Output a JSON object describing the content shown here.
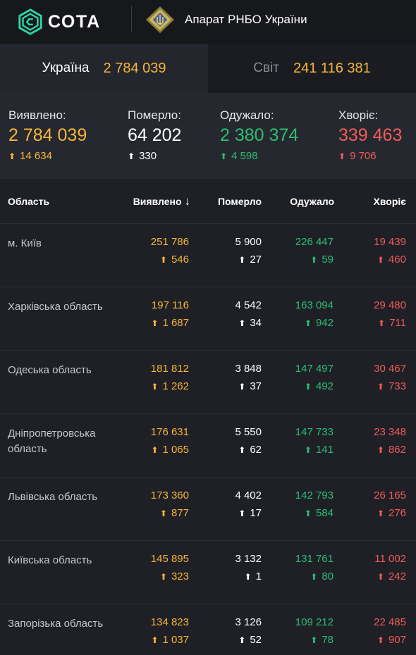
{
  "header": {
    "brand": "СОТА",
    "partner": "Апарат РНБО України"
  },
  "tabs": [
    {
      "label": "Україна",
      "value": "2 784 039",
      "active": true
    },
    {
      "label": "Світ",
      "value": "241 116 381",
      "active": false
    }
  ],
  "summary": {
    "detected": {
      "label": "Виявлено:",
      "value": "2 784 039",
      "delta": "14 634"
    },
    "died": {
      "label": "Померло:",
      "value": "64 202",
      "delta": "330"
    },
    "recovered": {
      "label": "Одужало:",
      "value": "2 380 374",
      "delta": "4 598"
    },
    "sick": {
      "label": "Хворіє:",
      "value": "339 463",
      "delta": "9 706"
    }
  },
  "table": {
    "headers": {
      "region": "Область",
      "detected": "Виявлено",
      "died": "Померло",
      "recovered": "Одужало",
      "sick": "Хворіє"
    },
    "rows": [
      {
        "region": "м. Київ",
        "detected": "251 786",
        "detected_d": "546",
        "died": "5 900",
        "died_d": "27",
        "recovered": "226 447",
        "recovered_d": "59",
        "sick": "19 439",
        "sick_d": "460"
      },
      {
        "region": "Харківська область",
        "detected": "197 116",
        "detected_d": "1 687",
        "died": "4 542",
        "died_d": "34",
        "recovered": "163 094",
        "recovered_d": "942",
        "sick": "29 480",
        "sick_d": "711"
      },
      {
        "region": "Одеська область",
        "detected": "181 812",
        "detected_d": "1 262",
        "died": "3 848",
        "died_d": "37",
        "recovered": "147 497",
        "recovered_d": "492",
        "sick": "30 467",
        "sick_d": "733"
      },
      {
        "region": "Дніпропетровська область",
        "detected": "176 631",
        "detected_d": "1 065",
        "died": "5 550",
        "died_d": "62",
        "recovered": "147 733",
        "recovered_d": "141",
        "sick": "23 348",
        "sick_d": "862"
      },
      {
        "region": "Львівська область",
        "detected": "173 360",
        "detected_d": "877",
        "died": "4 402",
        "died_d": "17",
        "recovered": "142 793",
        "recovered_d": "584",
        "sick": "26 165",
        "sick_d": "276"
      },
      {
        "region": "Київська область",
        "detected": "145 895",
        "detected_d": "323",
        "died": "3 132",
        "died_d": "1",
        "recovered": "131 761",
        "recovered_d": "80",
        "sick": "11 002",
        "sick_d": "242"
      },
      {
        "region": "Запорізька область",
        "detected": "134 823",
        "detected_d": "1 037",
        "died": "3 126",
        "died_d": "52",
        "recovered": "109 212",
        "recovered_d": "78",
        "sick": "22 485",
        "sick_d": "907"
      }
    ]
  },
  "colors": {
    "yellow": "#f5b53a",
    "green": "#2bbd74",
    "red": "#f05a5a",
    "white": "#ffffff"
  }
}
